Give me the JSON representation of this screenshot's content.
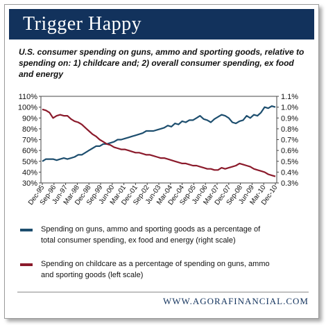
{
  "header": {
    "title": "Trigger Happy"
  },
  "subtitle": "U.S. consumer spending on guns, ammo and sporting goods, relative to spending on: 1) childcare and; 2) overall consumer spending, ex food and energy",
  "chart_data": {
    "type": "line",
    "title": "",
    "x_tick_labels": [
      "Dec-95",
      "Sep-96",
      "Jun-97",
      "Mar-98",
      "Dec-98",
      "Sep-99",
      "Jun-00",
      "Mar-01",
      "Dec-01",
      "Sep-02",
      "Jun-03",
      "Mar-04",
      "Dec-04",
      "Sep-05",
      "Jun-06",
      "Mar-07",
      "Dec-07",
      "Sep-08",
      "Jun-09",
      "Mar-10",
      "Dec-10"
    ],
    "left_axis": {
      "ticks": [
        "110%",
        "100%",
        "90%",
        "80%",
        "70%",
        "60%",
        "50%",
        "40%",
        "30%"
      ],
      "ylim": [
        30,
        110
      ]
    },
    "right_axis": {
      "ticks": [
        "1.1%",
        "1.0%",
        "0.9%",
        "0.8%",
        "0.7%",
        "0.6%",
        "0.5%",
        "0.4%",
        "0.3%"
      ],
      "ylim": [
        0.3,
        1.1
      ]
    },
    "grid": false,
    "legend_position": "below",
    "series": [
      {
        "name": "Spending on guns, ammo and sporting goods as a percentage of total consumer spending, ex food and energy (right scale)",
        "axis": "right",
        "color": "#1d4e6e",
        "values": [
          0.5,
          0.52,
          0.52,
          0.52,
          0.51,
          0.52,
          0.53,
          0.52,
          0.53,
          0.54,
          0.56,
          0.56,
          0.58,
          0.6,
          0.62,
          0.64,
          0.64,
          0.66,
          0.66,
          0.67,
          0.68,
          0.7,
          0.7,
          0.71,
          0.72,
          0.73,
          0.74,
          0.75,
          0.76,
          0.78,
          0.78,
          0.78,
          0.79,
          0.8,
          0.81,
          0.83,
          0.82,
          0.85,
          0.84,
          0.87,
          0.86,
          0.88,
          0.88,
          0.9,
          0.92,
          0.89,
          0.88,
          0.86,
          0.89,
          0.91,
          0.93,
          0.92,
          0.9,
          0.86,
          0.85,
          0.87,
          0.88,
          0.92,
          0.9,
          0.93,
          0.92,
          0.95,
          1.0,
          0.99,
          1.01,
          1.0
        ]
      },
      {
        "name": "Spending on childcare as a percentage of spending on guns, ammo and sporting goods (left scale)",
        "axis": "left",
        "color": "#8b1a2b",
        "values": [
          98,
          97,
          95,
          90,
          92,
          93,
          92,
          92,
          89,
          87,
          86,
          84,
          81,
          78,
          75,
          73,
          70,
          68,
          66,
          65,
          63,
          62,
          61,
          61,
          60,
          59,
          58,
          58,
          57,
          56,
          56,
          55,
          54,
          53,
          53,
          52,
          51,
          50,
          49,
          48,
          48,
          47,
          46,
          46,
          45,
          44,
          43,
          43,
          42,
          42,
          44,
          43,
          44,
          45,
          46,
          48,
          47,
          46,
          45,
          43,
          42,
          41,
          40,
          38,
          37,
          36
        ]
      }
    ]
  },
  "legend": [
    {
      "text": "Spending on guns, ammo and sporting goods as a percentage of total consumer spending, ex food and energy (right scale)",
      "color": "#1d4e6e"
    },
    {
      "text": "Spending on childcare as a percentage of spending on guns, ammo and sporting goods (left scale)",
      "color": "#8b1a2b"
    }
  ],
  "footer": "WWW.AGORAFINANCIAL.COM"
}
